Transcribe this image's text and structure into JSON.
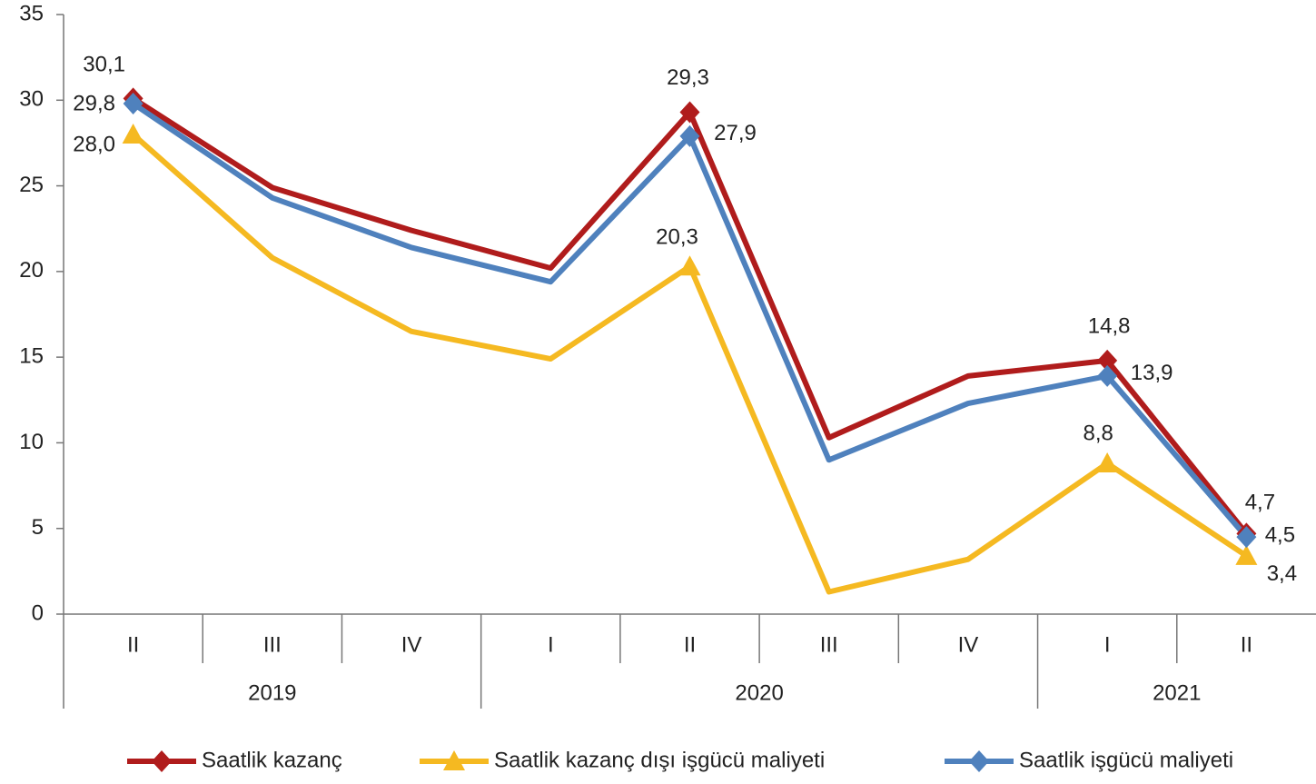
{
  "chart_data": {
    "type": "line",
    "categories": [
      "II",
      "III",
      "IV",
      "I",
      "II",
      "III",
      "IV",
      "I",
      "II"
    ],
    "groups": [
      {
        "label": "2019",
        "span": 3
      },
      {
        "label": "2020",
        "span": 4
      },
      {
        "label": "2021",
        "span": 2
      }
    ],
    "series": [
      {
        "name": "Saatlik kazanç",
        "color": "#b01c1c",
        "marker": "diamond",
        "values": [
          30.1,
          24.9,
          22.4,
          20.2,
          29.3,
          10.3,
          13.9,
          14.8,
          4.7
        ],
        "value_labels": [
          "30,1",
          null,
          null,
          null,
          "29,3",
          null,
          null,
          "14,8",
          "4,7"
        ]
      },
      {
        "name": "Saatlik kazanç dışı işgücü maliyeti",
        "color": "#f5b921",
        "marker": "triangle",
        "values": [
          28.0,
          20.8,
          16.5,
          14.9,
          20.3,
          1.3,
          3.2,
          8.8,
          3.4
        ],
        "value_labels": [
          "28,0",
          null,
          null,
          null,
          "20,3",
          null,
          null,
          "8,8",
          "3,4"
        ]
      },
      {
        "name": "Saatlik işgücü maliyeti",
        "color": "#4f81bd",
        "marker": "diamond",
        "values": [
          29.8,
          24.3,
          21.4,
          19.4,
          27.9,
          9.0,
          12.3,
          13.9,
          4.5
        ],
        "value_labels": [
          "29,8",
          null,
          null,
          null,
          "27,9",
          null,
          null,
          "13,9",
          "4,5"
        ]
      }
    ],
    "ylim": [
      0,
      35
    ],
    "yticks": [
      0,
      5,
      10,
      15,
      20,
      25,
      30,
      35
    ],
    "legend": "bottom"
  }
}
